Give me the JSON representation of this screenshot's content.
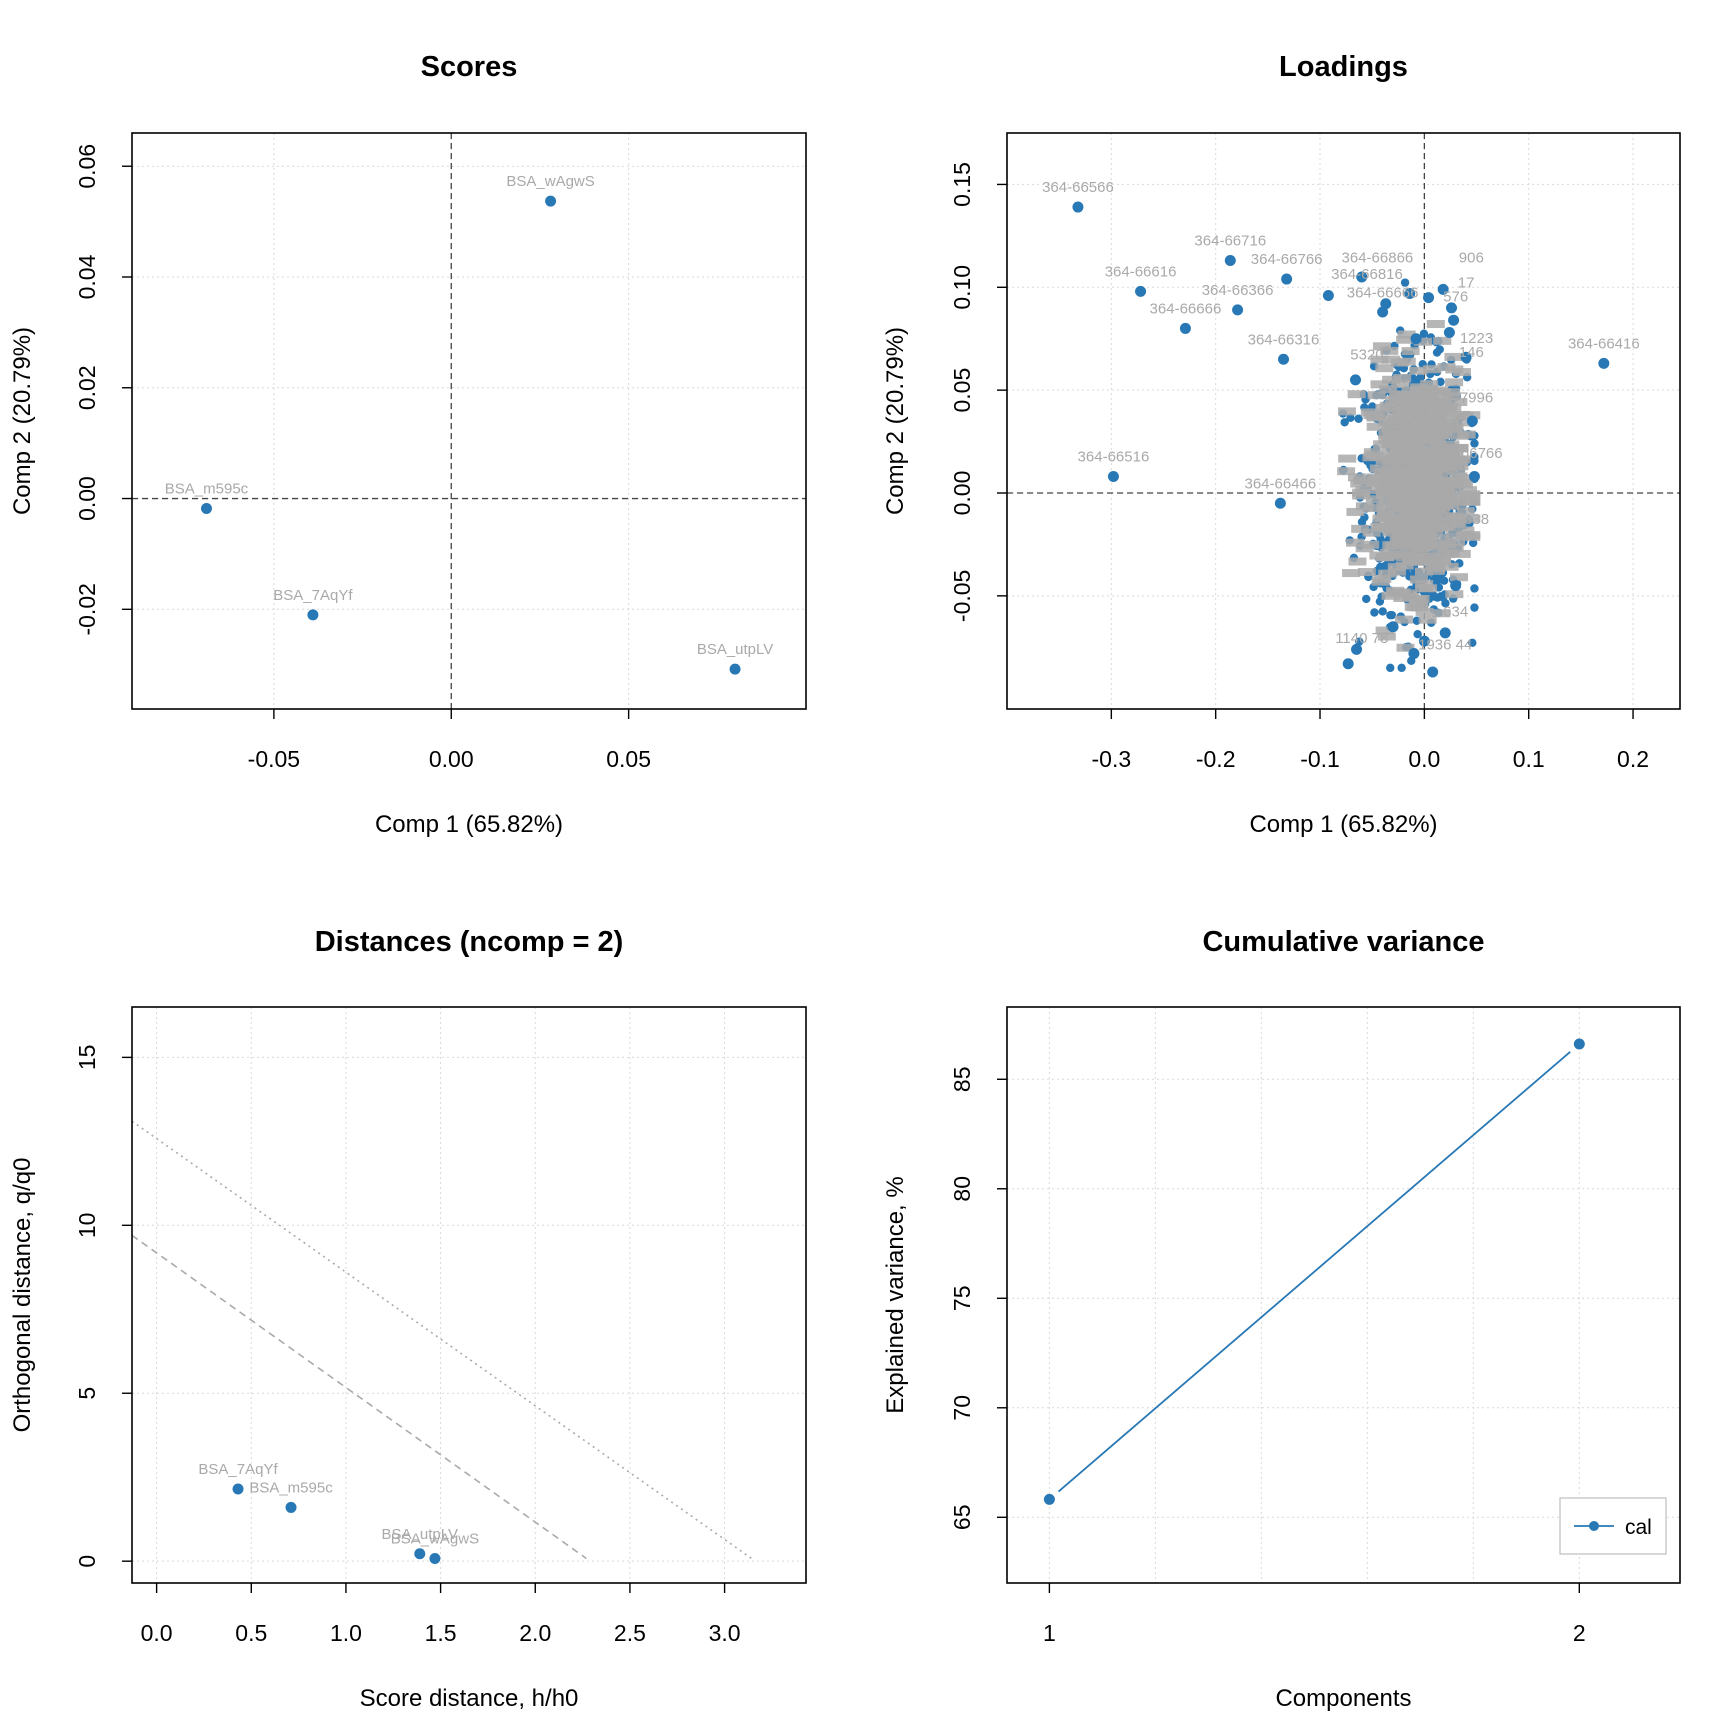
{
  "colors": {
    "point": "#2878b5",
    "label": "#a9a9a9",
    "grid": "#d9d9d9",
    "axis": "#000000",
    "zero": "#444444",
    "limit": "#aaaaaa"
  },
  "chart_data": [
    {
      "id": "scores",
      "type": "scatter",
      "title": "Scores",
      "xlabel": "Comp 1 (65.82%)",
      "ylabel": "Comp 2 (20.79%)",
      "xlim": [
        -0.09,
        0.1
      ],
      "ylim": [
        -0.038,
        0.066
      ],
      "xticks": [
        -0.05,
        0.0,
        0.05
      ],
      "xtick_labels": [
        "-0.05",
        "0.00",
        "0.05"
      ],
      "yticks": [
        -0.02,
        0.0,
        0.02,
        0.04,
        0.06
      ],
      "ytick_labels": [
        "-0.02",
        "0.00",
        "0.02",
        "0.04",
        "0.06"
      ],
      "zero_lines": true,
      "grid": true,
      "points": [
        {
          "label": "BSA_wAgwS",
          "x": 0.028,
          "y": 0.0537
        },
        {
          "label": "BSA_m595c",
          "x": -0.069,
          "y": -0.0018
        },
        {
          "label": "BSA_7AqYf",
          "x": -0.039,
          "y": -0.021
        },
        {
          "label": "BSA_utpLV",
          "x": 0.08,
          "y": -0.0308
        }
      ]
    },
    {
      "id": "loadings",
      "type": "scatter",
      "title": "Loadings",
      "xlabel": "Comp 1 (65.82%)",
      "ylabel": "Comp 2 (20.79%)",
      "xlim": [
        -0.4,
        0.245
      ],
      "ylim": [
        -0.105,
        0.175
      ],
      "xticks": [
        -0.3,
        -0.2,
        -0.1,
        0.0,
        0.1,
        0.2
      ],
      "xtick_labels": [
        "-0.3",
        "-0.2",
        "-0.1",
        "0.0",
        "0.1",
        "0.2"
      ],
      "yticks": [
        -0.05,
        0.0,
        0.05,
        0.1,
        0.15
      ],
      "ytick_labels": [
        "-0.05",
        "0.00",
        "0.05",
        "0.10",
        "0.15"
      ],
      "zero_lines": true,
      "grid": true,
      "points": [
        {
          "label": "364-66566",
          "x": -0.332,
          "y": 0.139
        },
        {
          "label": "364-66716",
          "x": -0.186,
          "y": 0.113
        },
        {
          "label": "364-66766",
          "x": -0.132,
          "y": 0.104
        },
        {
          "label": "364-66616",
          "x": -0.272,
          "y": 0.098
        },
        {
          "label": "364-66366",
          "x": -0.179,
          "y": 0.089
        },
        {
          "label": "364-66666",
          "x": -0.229,
          "y": 0.08
        },
        {
          "label": "364-66316",
          "x": -0.135,
          "y": 0.065
        },
        {
          "label": "364-66416",
          "x": 0.172,
          "y": 0.063
        },
        {
          "label": "364-66516",
          "x": -0.298,
          "y": 0.008
        },
        {
          "label": "364-66466",
          "x": -0.138,
          "y": -0.005
        }
      ],
      "cluster_points": [
        {
          "x": -0.06,
          "y": 0.105
        },
        {
          "x": -0.092,
          "y": 0.096
        },
        {
          "x": -0.037,
          "y": 0.092
        },
        {
          "x": -0.04,
          "y": 0.088
        },
        {
          "x": -0.066,
          "y": 0.055
        },
        {
          "x": -0.073,
          "y": -0.083
        },
        {
          "x": -0.065,
          "y": -0.076
        },
        {
          "x": -0.01,
          "y": -0.078
        },
        {
          "x": 0.008,
          "y": -0.087
        },
        {
          "x": 0.046,
          "y": 0.035
        },
        {
          "x": 0.04,
          "y": 0.066
        },
        {
          "x": 0.048,
          "y": 0.008
        },
        {
          "x": 0.026,
          "y": 0.09
        },
        {
          "x": 0.028,
          "y": 0.084
        },
        {
          "x": 0.024,
          "y": 0.078
        },
        {
          "x": 0.018,
          "y": 0.099
        },
        {
          "x": 0.004,
          "y": 0.095
        },
        {
          "x": -0.014,
          "y": 0.097
        },
        {
          "x": -0.008,
          "y": 0.075
        },
        {
          "x": 0.02,
          "y": -0.068
        },
        {
          "x": 0.0,
          "y": -0.072
        },
        {
          "x": -0.03,
          "y": -0.065
        },
        {
          "x": 0.03,
          "y": -0.045
        }
      ],
      "cluster_labels": [
        {
          "label": "364-66816",
          "x": -0.055,
          "y": 0.104
        },
        {
          "label": "364-66866",
          "x": -0.045,
          "y": 0.112
        },
        {
          "label": "364-66666",
          "x": -0.04,
          "y": 0.095
        },
        {
          "label": "1223",
          "x": 0.05,
          "y": 0.073
        },
        {
          "label": "146",
          "x": 0.045,
          "y": 0.066
        },
        {
          "label": "7996",
          "x": 0.05,
          "y": 0.044
        },
        {
          "label": "66766",
          "x": 0.055,
          "y": 0.017
        },
        {
          "label": "5320",
          "x": -0.055,
          "y": 0.065
        },
        {
          "label": "338",
          "x": 0.05,
          "y": -0.015
        },
        {
          "label": "1140 78",
          "x": -0.06,
          "y": -0.073
        },
        {
          "label": "1936 44",
          "x": 0.02,
          "y": -0.076
        },
        {
          "label": "634",
          "x": 0.03,
          "y": -0.06
        },
        {
          "label": "576",
          "x": 0.03,
          "y": 0.093
        },
        {
          "label": "17",
          "x": 0.04,
          "y": 0.1
        },
        {
          "label": "906",
          "x": 0.045,
          "y": 0.112
        }
      ]
    },
    {
      "id": "distances",
      "type": "scatter",
      "title": "Distances (ncomp = 2)",
      "xlabel": "Score distance, h/h0",
      "ylabel": "Orthogonal distance, q/q0",
      "xlim": [
        -0.13,
        3.43
      ],
      "ylim": [
        -0.65,
        16.5
      ],
      "xticks": [
        0.0,
        0.5,
        1.0,
        1.5,
        2.0,
        2.5,
        3.0
      ],
      "xtick_labels": [
        "0.0",
        "0.5",
        "1.0",
        "1.5",
        "2.0",
        "2.5",
        "3.0"
      ],
      "yticks": [
        0,
        5,
        10,
        15
      ],
      "ytick_labels": [
        "0",
        "5",
        "10",
        "15"
      ],
      "zero_lines": false,
      "grid": true,
      "limit_lines": [
        {
          "style": "dashed",
          "from": [
            -0.13,
            9.7
          ],
          "to": [
            2.27,
            0.08
          ]
        },
        {
          "style": "dotted",
          "from": [
            -0.13,
            13.1
          ],
          "to": [
            3.15,
            0.05
          ]
        }
      ],
      "points": [
        {
          "label": "BSA_7AqYf",
          "x": 0.43,
          "y": 2.15
        },
        {
          "label": "BSA_m595c",
          "x": 0.71,
          "y": 1.6
        },
        {
          "label": "BSA_utpLV",
          "x": 1.39,
          "y": 0.22
        },
        {
          "label": "BSA_wAgwS",
          "x": 1.47,
          "y": 0.08
        }
      ]
    },
    {
      "id": "variance",
      "type": "line",
      "title": "Cumulative variance",
      "xlabel": "Components",
      "ylabel": "Explained variance, %",
      "xlim": [
        0.92,
        2.19
      ],
      "ylim": [
        62.0,
        88.3
      ],
      "xticks": [
        1,
        2
      ],
      "xtick_labels": [
        "1",
        "2"
      ],
      "yticks": [
        65,
        70,
        75,
        80,
        85
      ],
      "ytick_labels": [
        "65",
        "70",
        "75",
        "80",
        "85"
      ],
      "xgrid": [
        1.0,
        1.2,
        1.4,
        1.6,
        1.8,
        2.0
      ],
      "zero_lines": false,
      "grid": true,
      "legend": {
        "position": "bottom-right",
        "entries": [
          "cal"
        ]
      },
      "series": [
        {
          "name": "cal",
          "x": [
            1,
            2
          ],
          "values": [
            65.82,
            86.61
          ]
        }
      ]
    }
  ]
}
